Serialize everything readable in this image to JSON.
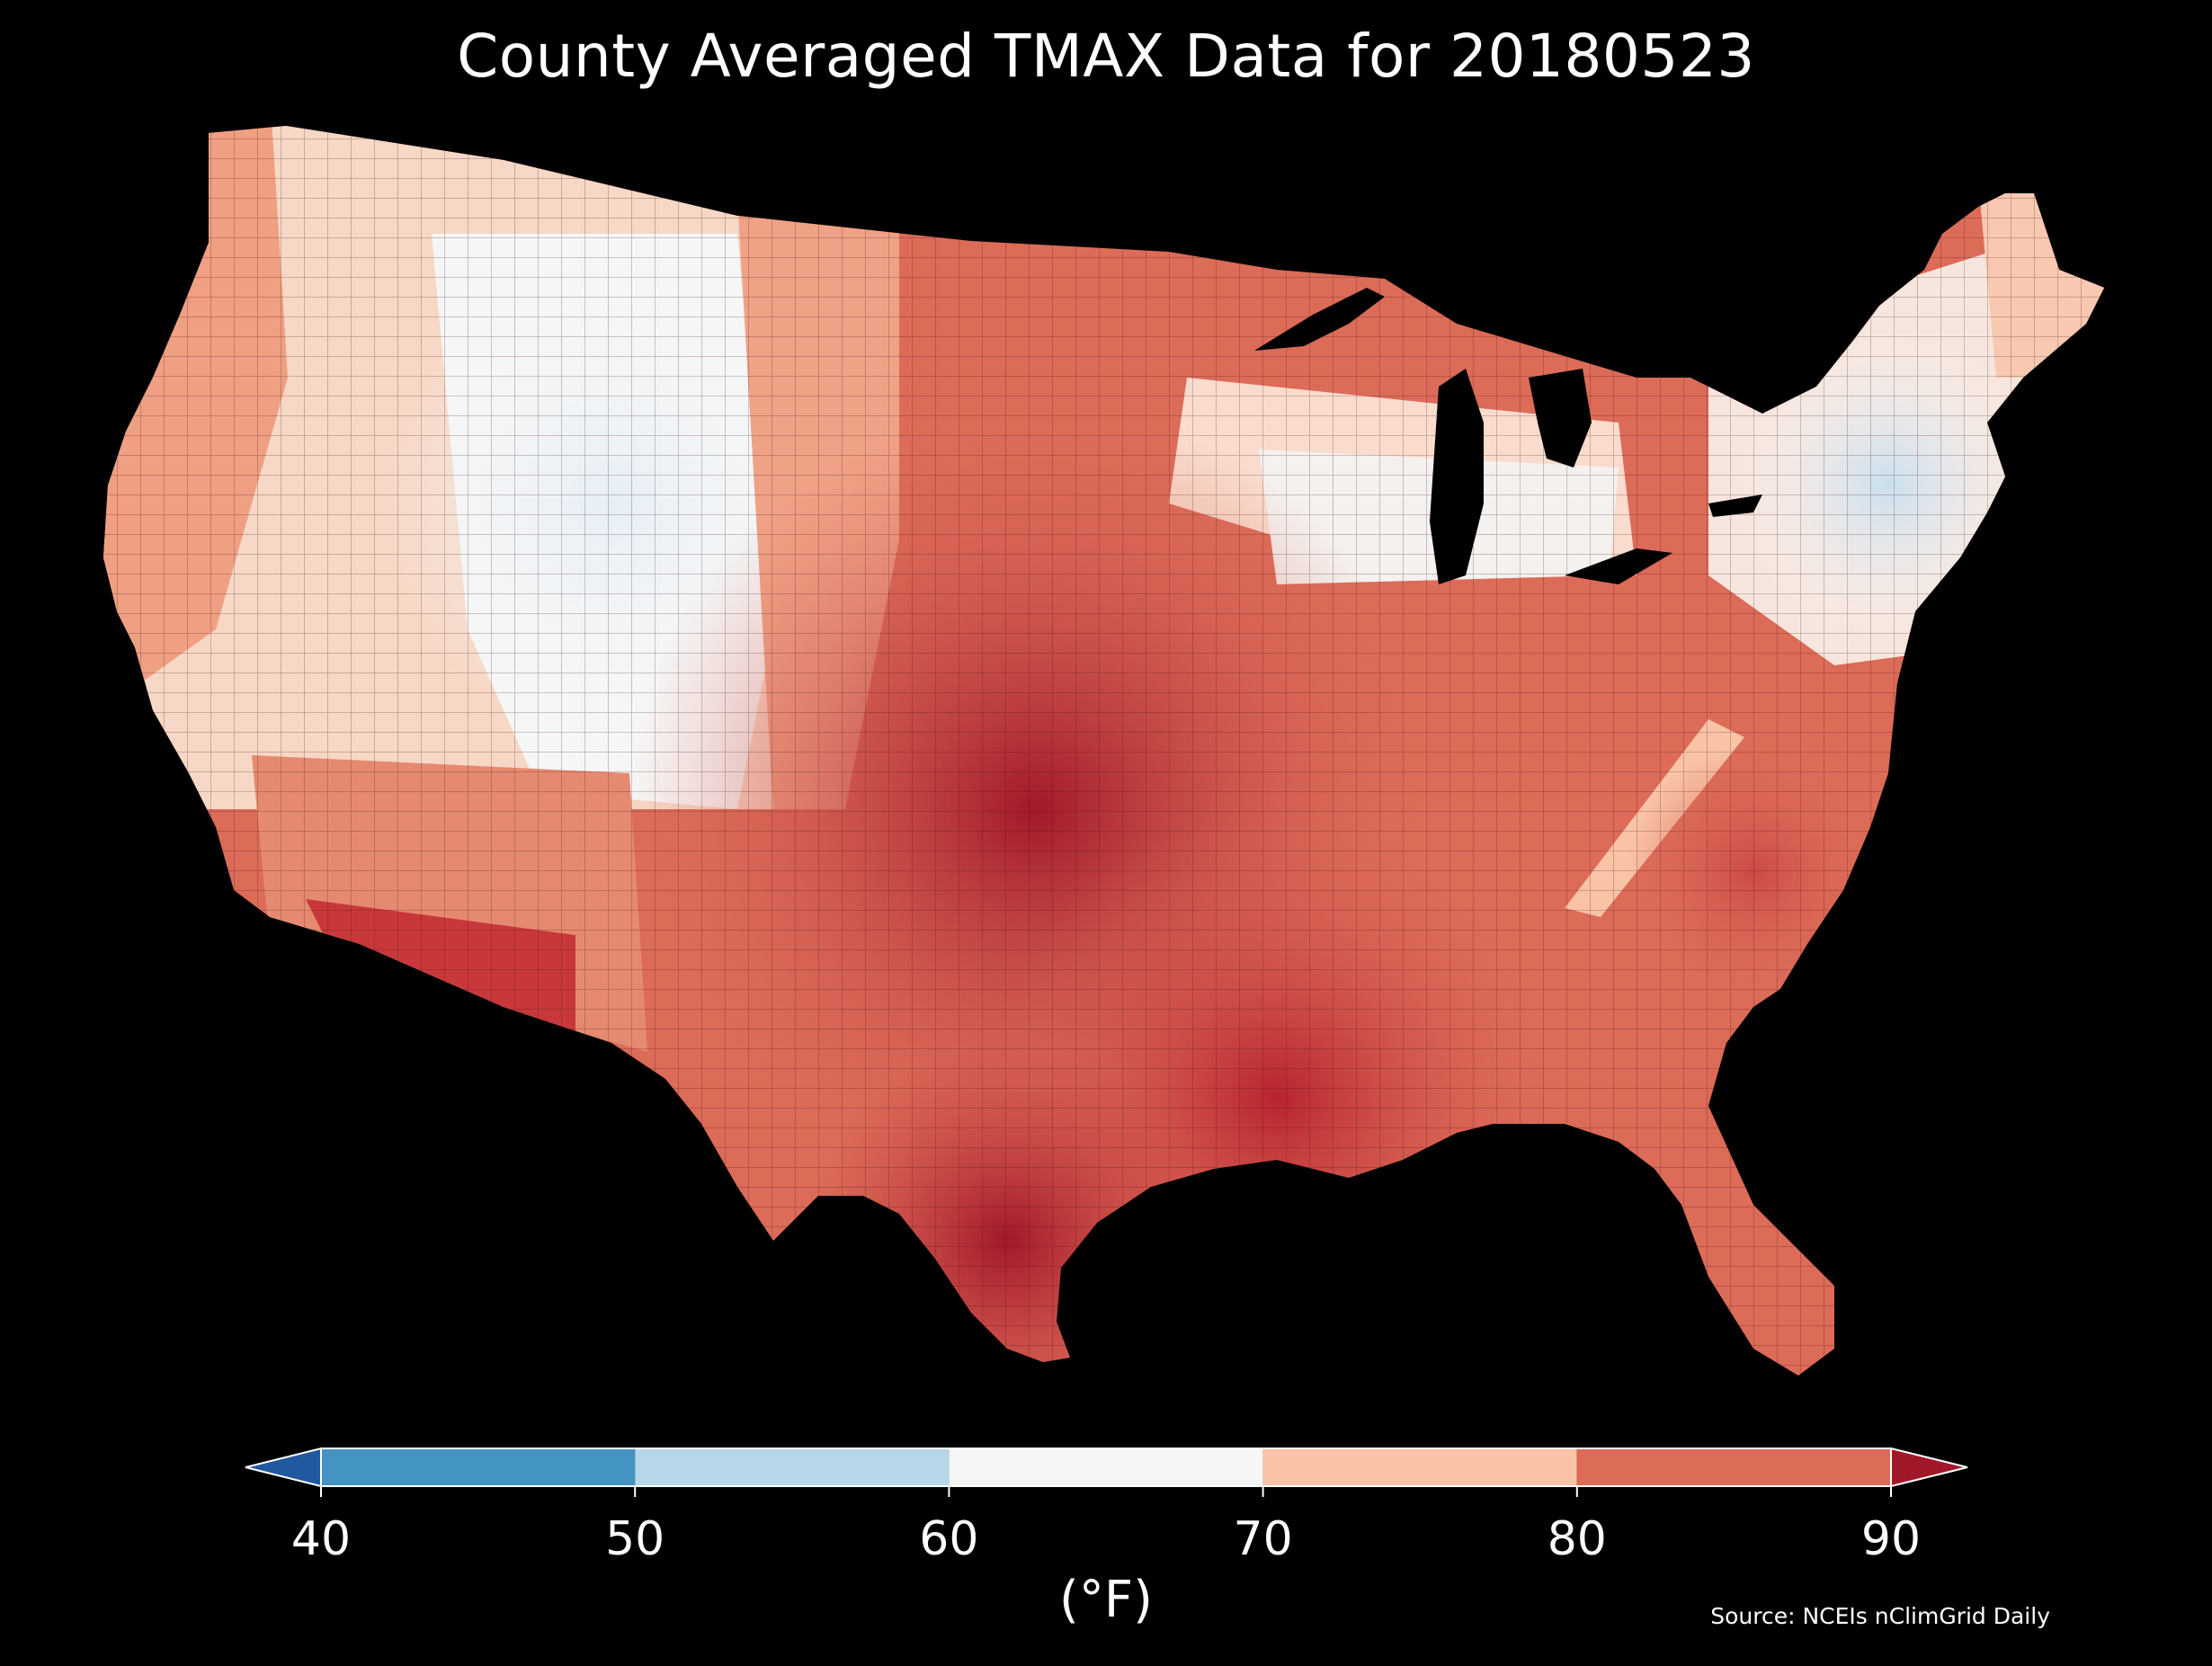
{
  "title": "County Averaged TMAX Data for 20180523",
  "colorbar": {
    "unit_label": "(°F)",
    "ticks": [
      "40",
      "50",
      "60",
      "70",
      "80",
      "90"
    ],
    "bins": [
      {
        "min": 40,
        "max": 50,
        "color": "#4393c3"
      },
      {
        "min": 50,
        "max": 60,
        "color": "#b6d7e8"
      },
      {
        "min": 60,
        "max": 70,
        "color": "#f6f6f6"
      },
      {
        "min": 70,
        "max": 80,
        "color": "#f9c3a6"
      },
      {
        "min": 80,
        "max": 90,
        "color": "#dc6b58"
      }
    ],
    "under_color": "#21599e",
    "over_color": "#a1182a",
    "extend": "both"
  },
  "source": "Source: NCEIs nClimGrid Daily",
  "map": {
    "region": "Contiguous United States",
    "variable": "TMAX",
    "date": "20180523",
    "background": "#000000",
    "county_borders": "#3a1010"
  }
}
